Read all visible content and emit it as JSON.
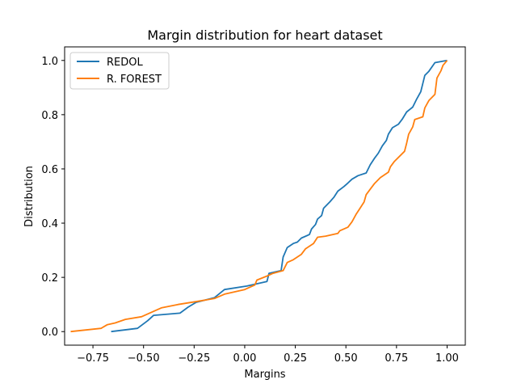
{
  "chart_data": {
    "type": "line",
    "title": "Margin distribution for heart dataset",
    "xlabel": "Margins",
    "ylabel": "Distribution",
    "xlim": [
      -0.89,
      1.09
    ],
    "ylim": [
      -0.05,
      1.05
    ],
    "xticks": [
      -0.75,
      -0.5,
      -0.25,
      0.0,
      0.25,
      0.5,
      0.75,
      1.0
    ],
    "xtick_labels": [
      "−0.75",
      "−0.50",
      "−0.25",
      "0.00",
      "0.25",
      "0.50",
      "0.75",
      "1.00"
    ],
    "yticks": [
      0.0,
      0.2,
      0.4,
      0.6,
      0.8,
      1.0
    ],
    "ytick_labels": [
      "0.0",
      "0.2",
      "0.4",
      "0.6",
      "0.8",
      "1.0"
    ],
    "grid": false,
    "legend_position": "top-left",
    "series": [
      {
        "name": "REDOL",
        "color": "#1f77b4",
        "points": [
          [
            -0.66,
            0.0
          ],
          [
            -0.53,
            0.012
          ],
          [
            -0.48,
            0.04
          ],
          [
            -0.45,
            0.06
          ],
          [
            -0.32,
            0.068
          ],
          [
            -0.28,
            0.09
          ],
          [
            -0.24,
            0.108
          ],
          [
            -0.15,
            0.125
          ],
          [
            -0.1,
            0.155
          ],
          [
            0.01,
            0.168
          ],
          [
            0.11,
            0.185
          ],
          [
            0.12,
            0.215
          ],
          [
            0.18,
            0.225
          ],
          [
            0.19,
            0.275
          ],
          [
            0.21,
            0.31
          ],
          [
            0.24,
            0.325
          ],
          [
            0.26,
            0.33
          ],
          [
            0.28,
            0.345
          ],
          [
            0.32,
            0.358
          ],
          [
            0.33,
            0.378
          ],
          [
            0.35,
            0.395
          ],
          [
            0.36,
            0.415
          ],
          [
            0.38,
            0.428
          ],
          [
            0.39,
            0.455
          ],
          [
            0.42,
            0.478
          ],
          [
            0.44,
            0.495
          ],
          [
            0.46,
            0.518
          ],
          [
            0.49,
            0.535
          ],
          [
            0.51,
            0.548
          ],
          [
            0.53,
            0.562
          ],
          [
            0.56,
            0.575
          ],
          [
            0.6,
            0.585
          ],
          [
            0.62,
            0.615
          ],
          [
            0.64,
            0.638
          ],
          [
            0.66,
            0.658
          ],
          [
            0.68,
            0.685
          ],
          [
            0.7,
            0.705
          ],
          [
            0.71,
            0.728
          ],
          [
            0.73,
            0.752
          ],
          [
            0.76,
            0.765
          ],
          [
            0.78,
            0.785
          ],
          [
            0.8,
            0.81
          ],
          [
            0.83,
            0.828
          ],
          [
            0.85,
            0.858
          ],
          [
            0.87,
            0.885
          ],
          [
            0.88,
            0.915
          ],
          [
            0.89,
            0.945
          ],
          [
            0.91,
            0.96
          ],
          [
            0.94,
            0.992
          ],
          [
            1.0,
            1.0
          ]
        ]
      },
      {
        "name": "R. FOREST",
        "color": "#ff7f0e",
        "points": [
          [
            -0.86,
            0.0
          ],
          [
            -0.71,
            0.012
          ],
          [
            -0.68,
            0.025
          ],
          [
            -0.64,
            0.032
          ],
          [
            -0.59,
            0.045
          ],
          [
            -0.51,
            0.055
          ],
          [
            -0.41,
            0.088
          ],
          [
            -0.33,
            0.1
          ],
          [
            -0.23,
            0.112
          ],
          [
            -0.15,
            0.122
          ],
          [
            -0.1,
            0.138
          ],
          [
            0.0,
            0.155
          ],
          [
            0.05,
            0.172
          ],
          [
            0.06,
            0.19
          ],
          [
            0.11,
            0.205
          ],
          [
            0.14,
            0.215
          ],
          [
            0.19,
            0.225
          ],
          [
            0.21,
            0.255
          ],
          [
            0.24,
            0.265
          ],
          [
            0.28,
            0.285
          ],
          [
            0.3,
            0.305
          ],
          [
            0.34,
            0.325
          ],
          [
            0.36,
            0.348
          ],
          [
            0.4,
            0.352
          ],
          [
            0.46,
            0.362
          ],
          [
            0.47,
            0.372
          ],
          [
            0.51,
            0.385
          ],
          [
            0.53,
            0.405
          ],
          [
            0.55,
            0.432
          ],
          [
            0.57,
            0.455
          ],
          [
            0.59,
            0.478
          ],
          [
            0.6,
            0.505
          ],
          [
            0.62,
            0.525
          ],
          [
            0.64,
            0.545
          ],
          [
            0.67,
            0.568
          ],
          [
            0.71,
            0.588
          ],
          [
            0.72,
            0.608
          ],
          [
            0.74,
            0.628
          ],
          [
            0.79,
            0.665
          ],
          [
            0.8,
            0.695
          ],
          [
            0.81,
            0.728
          ],
          [
            0.83,
            0.755
          ],
          [
            0.84,
            0.782
          ],
          [
            0.88,
            0.792
          ],
          [
            0.89,
            0.825
          ],
          [
            0.91,
            0.852
          ],
          [
            0.94,
            0.875
          ],
          [
            0.95,
            0.935
          ],
          [
            0.97,
            0.962
          ],
          [
            0.98,
            0.982
          ],
          [
            1.0,
            1.0
          ]
        ]
      }
    ]
  }
}
